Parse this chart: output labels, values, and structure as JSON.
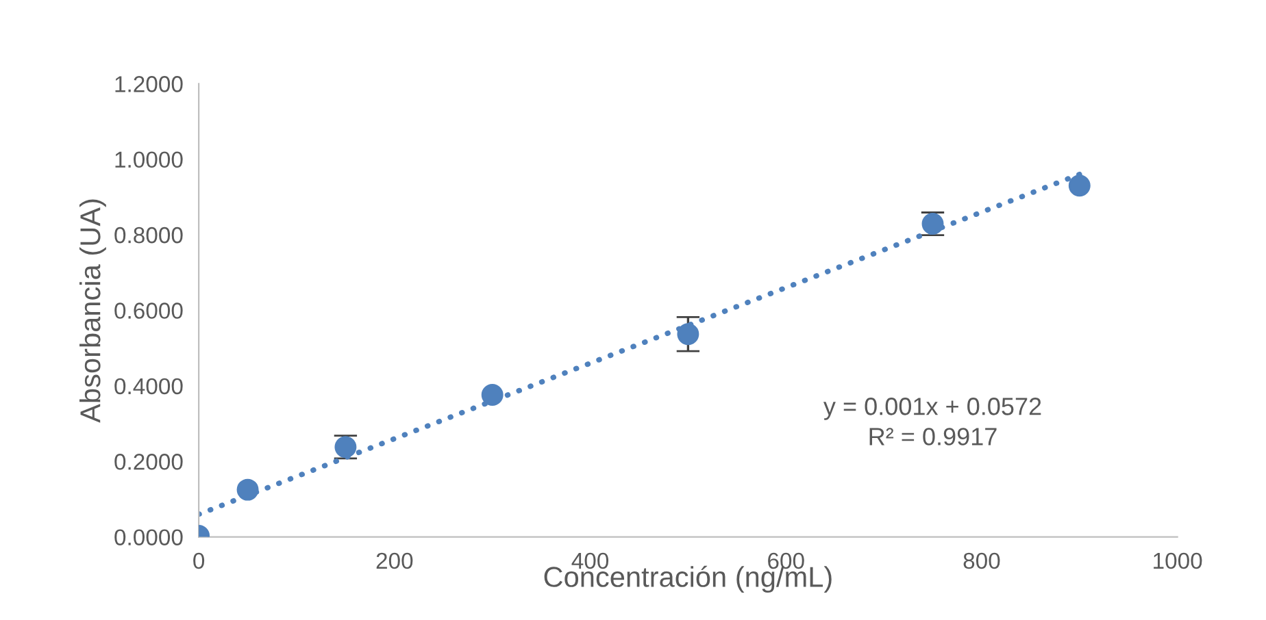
{
  "chart_data": {
    "type": "scatter",
    "xlabel": "Concentración (ng/mL)",
    "ylabel": "Absorbancia (UA)",
    "xlim": [
      0,
      1000
    ],
    "xticks": [
      0,
      200,
      400,
      600,
      800,
      1000
    ],
    "ylim": [
      0,
      1.2
    ],
    "yticks": [
      {
        "value": 0,
        "label": "0.0000"
      },
      {
        "value": 0.2,
        "label": "0.2000"
      },
      {
        "value": 0.4,
        "label": "0.4000"
      },
      {
        "value": 0.6,
        "label": "0.6000"
      },
      {
        "value": 0.8,
        "label": "0.8000"
      },
      {
        "value": 1.0,
        "label": "1.0000"
      },
      {
        "value": 1.2,
        "label": "1.2000"
      }
    ],
    "grid": false,
    "legend": false,
    "series": [
      {
        "color": "#4f81bd",
        "marker": "circle",
        "x": [
          0,
          50,
          150,
          300,
          500,
          750,
          900
        ],
        "values": [
          0.003,
          0.125,
          0.238,
          0.376,
          0.537,
          0.829,
          0.93
        ],
        "errors": [
          null,
          null,
          0.03,
          null,
          0.045,
          0.03,
          null
        ]
      },
      {
        "type": "line",
        "color": "#4f81bd",
        "line_style": "dotted",
        "x": [
          0,
          900
        ],
        "values": [
          0.06,
          0.96
        ]
      }
    ],
    "annotations": [
      "y = 0.001x + 0.0572\nR² = 0.9917"
    ]
  }
}
